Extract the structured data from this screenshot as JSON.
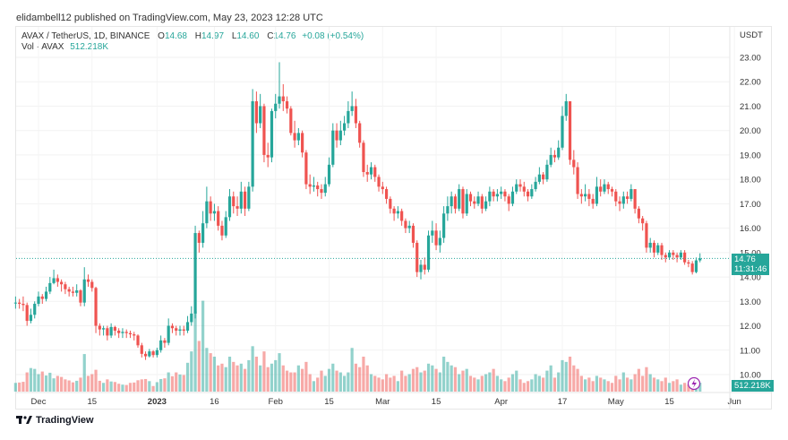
{
  "header": {
    "published": "elidambell12 published on TradingView.com, May 23, 2023 12:28 UTC"
  },
  "legend": {
    "symbol": "AVAX / TetherUS, 1D, BINANCE",
    "open_label": "O",
    "open": "14.68",
    "high_label": "H",
    "high": "14.97",
    "low_label": "L",
    "low": "14.60",
    "close_label": "C",
    "close": "14.76",
    "change": "+0.08 (+0.54%)",
    "vol_label": "Vol · AVAX",
    "vol": "512.218K"
  },
  "price_axis": {
    "currency": "USDT",
    "last_price": "14.76",
    "countdown": "11:31:46",
    "last_volume": "512.218K"
  },
  "footer": {
    "brand": "TradingView"
  },
  "colors": {
    "up": "#26a69a",
    "down": "#ef5350",
    "accent": "#26a69a",
    "lightning": "#9c27b0"
  },
  "chart_data": {
    "type": "candlestick",
    "title": "AVAX / TetherUS, 1D, BINANCE",
    "ylim": [
      9.5,
      23.3
    ],
    "yticks": [
      "23.00",
      "22.00",
      "21.00",
      "20.00",
      "19.00",
      "18.00",
      "17.00",
      "16.00",
      "15.00",
      "14.00",
      "13.00",
      "12.00",
      "11.00",
      "10.00"
    ],
    "xticks": [
      [
        "2022-12-01",
        "Dec"
      ],
      [
        "2022-12-15",
        "15"
      ],
      [
        "2023-01-01",
        "2023"
      ],
      [
        "2023-01-16",
        "16"
      ],
      [
        "2023-02-01",
        "Feb"
      ],
      [
        "2023-02-15",
        "15"
      ],
      [
        "2023-03-01",
        "Mar"
      ],
      [
        "2023-03-15",
        "15"
      ],
      [
        "2023-04-01",
        "Apr"
      ],
      [
        "2023-04-17",
        "17"
      ],
      [
        "2023-05-01",
        "May"
      ],
      [
        "2023-05-15",
        "15"
      ],
      [
        "2023-06-01",
        "Jun"
      ]
    ],
    "grid": true,
    "closes_start": "2022-11-25",
    "close": [
      12.95,
      12.9,
      12.85,
      12.2,
      12.45,
      12.9,
      13.2,
      13.1,
      13.4,
      13.75,
      13.95,
      13.8,
      13.7,
      13.5,
      13.4,
      13.35,
      13.45,
      12.95,
      13.9,
      13.8,
      13.55,
      12.0,
      11.85,
      11.9,
      11.6,
      11.95,
      11.8,
      11.7,
      11.75,
      11.7,
      11.65,
      11.6,
      11.2,
      10.85,
      10.75,
      10.95,
      10.8,
      11.0,
      11.4,
      11.3,
      12.0,
      11.9,
      11.8,
      11.85,
      11.8,
      12.15,
      12.5,
      15.8,
      15.4,
      16.2,
      17.1,
      16.6,
      16.7,
      16.1,
      15.7,
      16.45,
      17.3,
      16.9,
      16.8,
      17.5,
      16.8,
      17.7,
      21.2,
      20.3,
      21.0,
      19.0,
      18.9,
      20.8,
      21.1,
      21.4,
      21.2,
      20.9,
      19.9,
      19.6,
      19.9,
      19.1,
      17.8,
      17.7,
      17.75,
      17.6,
      17.45,
      17.8,
      18.6,
      20.0,
      19.6,
      20.0,
      20.3,
      20.8,
      21.0,
      20.3,
      19.5,
      18.3,
      18.2,
      18.5,
      18.1,
      17.7,
      17.6,
      17.2,
      16.8,
      16.6,
      16.7,
      16.3,
      16.0,
      16.1,
      15.4,
      14.2,
      14.5,
      14.3,
      15.7,
      15.9,
      15.3,
      15.6,
      16.6,
      16.9,
      17.3,
      16.8,
      17.6,
      16.6,
      17.4,
      17.1,
      17.0,
      17.3,
      16.8,
      17.1,
      17.5,
      17.3,
      17.4,
      17.5,
      17.3,
      17.0,
      17.5,
      17.8,
      17.7,
      17.5,
      17.3,
      17.6,
      17.9,
      18.2,
      18.0,
      18.6,
      19.0,
      18.9,
      19.3,
      20.6,
      21.2,
      18.8,
      18.5,
      17.4,
      17.3,
      17.4,
      17.2,
      17.0,
      17.7,
      17.5,
      17.8,
      17.6,
      17.5,
      17.1,
      17.0,
      17.3,
      17.2,
      17.6,
      16.8,
      16.4,
      16.2,
      15.2,
      15.4,
      15.0,
      15.3,
      14.9,
      14.8,
      15.0,
      14.9,
      14.8,
      15.0,
      14.6,
      14.55,
      14.2,
      14.68,
      14.76
    ],
    "high": [
      13.2,
      13.1,
      13.2,
      12.95,
      12.7,
      13.0,
      13.4,
      13.3,
      13.6,
      14.0,
      14.3,
      14.1,
      13.9,
      13.8,
      13.6,
      13.6,
      13.7,
      13.5,
      14.4,
      14.1,
      13.9,
      13.6,
      12.1,
      12.0,
      12.0,
      12.1,
      12.0,
      11.9,
      11.9,
      11.85,
      11.8,
      11.75,
      11.65,
      11.3,
      10.95,
      11.05,
      11.0,
      11.1,
      11.6,
      11.5,
      12.3,
      12.1,
      12.0,
      12.0,
      12.0,
      12.4,
      12.8,
      16.1,
      15.9,
      16.7,
      17.7,
      17.3,
      17.0,
      16.9,
      16.3,
      16.7,
      17.6,
      17.5,
      17.3,
      17.9,
      17.7,
      17.9,
      21.7,
      21.6,
      21.5,
      21.1,
      19.5,
      20.9,
      21.5,
      22.8,
      21.9,
      21.4,
      21.0,
      20.4,
      20.1,
      20.0,
      19.2,
      18.2,
      18.1,
      17.9,
      17.8,
      18.1,
      18.9,
      20.3,
      20.3,
      20.4,
      20.6,
      21.2,
      21.6,
      21.3,
      20.4,
      19.6,
      18.6,
      18.7,
      18.6,
      18.2,
      17.9,
      17.7,
      17.3,
      16.9,
      16.9,
      16.8,
      16.4,
      16.3,
      16.2,
      15.5,
      14.7,
      14.8,
      15.9,
      16.3,
      16.2,
      15.9,
      16.9,
      17.3,
      17.5,
      17.4,
      17.8,
      17.7,
      17.6,
      17.5,
      17.3,
      17.5,
      17.4,
      17.3,
      17.7,
      17.6,
      17.6,
      17.7,
      17.6,
      17.4,
      17.7,
      18.0,
      18.0,
      17.9,
      17.6,
      17.8,
      18.1,
      18.5,
      18.3,
      18.8,
      19.3,
      19.2,
      19.6,
      21.0,
      21.5,
      21.2,
      19.2,
      18.7,
      17.6,
      17.8,
      17.6,
      17.4,
      18.1,
      18.0,
      18.0,
      17.9,
      17.7,
      17.6,
      17.3,
      17.5,
      17.5,
      17.8,
      17.6,
      16.9,
      16.5,
      16.3,
      15.6,
      15.5,
      15.4,
      15.4,
      15.0,
      15.1,
      15.1,
      15.0,
      15.1,
      15.1,
      14.7,
      14.65,
      14.8,
      14.97
    ],
    "low": [
      12.7,
      12.7,
      12.6,
      12.0,
      12.1,
      12.3,
      12.8,
      12.9,
      13.0,
      13.3,
      13.7,
      13.6,
      13.4,
      13.3,
      13.2,
      13.2,
      13.2,
      12.8,
      12.8,
      13.6,
      13.4,
      11.7,
      11.6,
      11.6,
      11.4,
      11.5,
      11.6,
      11.5,
      11.5,
      11.5,
      11.5,
      11.4,
      11.1,
      10.7,
      10.6,
      10.7,
      10.7,
      10.7,
      10.9,
      11.1,
      11.2,
      11.7,
      11.6,
      11.6,
      11.6,
      11.7,
      12.0,
      12.3,
      15.0,
      15.2,
      16.0,
      16.3,
      16.3,
      15.9,
      15.5,
      15.6,
      16.3,
      16.6,
      16.5,
      16.6,
      16.5,
      16.7,
      17.5,
      19.9,
      20.1,
      18.7,
      18.5,
      18.7,
      20.5,
      20.9,
      20.8,
      20.7,
      19.8,
      19.3,
      19.4,
      18.9,
      17.6,
      17.4,
      17.5,
      17.3,
      17.2,
      17.3,
      17.7,
      18.5,
      19.3,
      19.4,
      19.8,
      20.1,
      20.6,
      20.1,
      19.3,
      18.1,
      17.9,
      18.0,
      17.9,
      17.5,
      17.4,
      17.0,
      16.6,
      16.3,
      16.4,
      16.1,
      15.8,
      15.8,
      15.2,
      14.0,
      13.9,
      14.1,
      14.2,
      15.4,
      15.1,
      15.0,
      15.4,
      16.3,
      16.6,
      16.6,
      16.7,
      16.4,
      16.5,
      16.9,
      16.8,
      16.9,
      16.6,
      16.7,
      16.9,
      17.1,
      17.1,
      17.2,
      17.1,
      16.7,
      16.9,
      17.4,
      17.5,
      17.3,
      17.1,
      17.2,
      17.5,
      17.8,
      17.8,
      17.9,
      18.5,
      18.7,
      18.8,
      19.2,
      20.4,
      18.6,
      18.2,
      17.2,
      17.0,
      17.1,
      16.9,
      16.8,
      16.9,
      17.3,
      17.4,
      17.4,
      17.3,
      16.9,
      16.7,
      16.8,
      17.0,
      17.1,
      16.6,
      16.2,
      15.9,
      15.0,
      15.0,
      14.8,
      14.9,
      14.7,
      14.6,
      14.7,
      14.7,
      14.6,
      14.7,
      14.5,
      14.4,
      14.1,
      14.15,
      14.6
    ],
    "volume_unit": "K",
    "volume": [
      500,
      520,
      560,
      1100,
      1350,
      1300,
      1000,
      1150,
      920,
      1080,
      760,
      900,
      840,
      700,
      640,
      530,
      620,
      800,
      2150,
      900,
      1000,
      1250,
      620,
      500,
      700,
      580,
      550,
      450,
      400,
      380,
      500,
      520,
      650,
      700,
      720,
      600,
      320,
      540,
      720,
      760,
      1100,
      880,
      1100,
      980,
      950,
      1650,
      2300,
      4600,
      2900,
      5200,
      2500,
      2200,
      2000,
      1500,
      1600,
      1400,
      2000,
      1700,
      1500,
      1600,
      1300,
      1800,
      2600,
      2000,
      1500,
      2300,
      1400,
      1600,
      1800,
      2200,
      1500,
      1200,
      1100,
      1100,
      1500,
      1300,
      1700,
      1000,
      600,
      800,
      1200,
      900,
      1300,
      1600,
      1200,
      1100,
      900,
      1100,
      2500,
      1600,
      1400,
      2000,
      1500,
      1000,
      900,
      800,
      700,
      1000,
      800,
      900,
      600,
      1200,
      900,
      1000,
      1300,
      1400,
      1100,
      1200,
      1600,
      1500,
      1300,
      1100,
      2000,
      1700,
      1500,
      1400,
      1000,
      1200,
      1300,
      900,
      800,
      700,
      900,
      1000,
      1100,
      1300,
      900,
      700,
      600,
      800,
      1000,
      1200,
      700,
      500,
      600,
      700,
      1000,
      900,
      800,
      1200,
      1500,
      800,
      1100,
      1800,
      1700,
      2000,
      1500,
      1300,
      900,
      700,
      800,
      600,
      900,
      800,
      700,
      600,
      500,
      900,
      700,
      1100,
      800,
      700,
      1000,
      1300,
      900,
      1400,
      1000,
      800,
      700,
      600,
      800,
      500,
      600,
      700,
      400,
      500,
      400,
      700,
      600,
      512
    ]
  }
}
